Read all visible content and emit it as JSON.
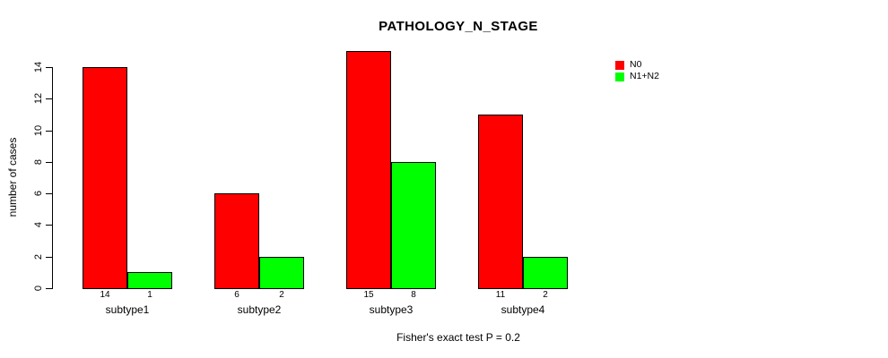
{
  "chart_data": {
    "type": "bar",
    "title": "PATHOLOGY_N_STAGE",
    "xlabel": "",
    "ylabel": "number of cases",
    "categories": [
      "subtype1",
      "subtype2",
      "subtype3",
      "subtype4"
    ],
    "series": [
      {
        "name": "N0",
        "color": "#FF0000",
        "values": [
          14,
          6,
          15,
          11
        ]
      },
      {
        "name": "N1+N2",
        "color": "#00FF00",
        "values": [
          1,
          2,
          8,
          2
        ]
      }
    ],
    "bar_value_labels": [
      [
        "14",
        "1"
      ],
      [
        "6",
        "2"
      ],
      [
        "15",
        "8"
      ],
      [
        "11",
        "2"
      ]
    ],
    "ylim": [
      0,
      14
    ],
    "yticks": [
      0,
      2,
      4,
      6,
      8,
      10,
      12,
      14
    ],
    "grid": false,
    "legend_position": "top-right",
    "annotation": "Fisher's exact test P = 0.2",
    "bar_border_color": "#000000",
    "axis_color": "#000000",
    "background": "#FFFFFF"
  },
  "legend": {
    "items": [
      {
        "label": "N0",
        "color": "#FF0000"
      },
      {
        "label": "N1+N2",
        "color": "#00FF00"
      }
    ]
  }
}
